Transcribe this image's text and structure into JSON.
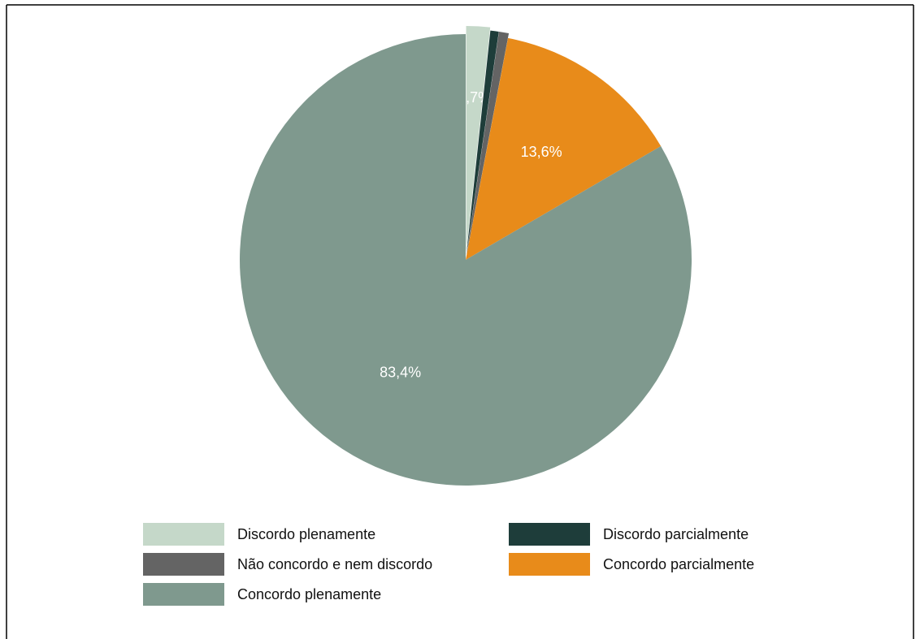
{
  "chart_data": {
    "type": "pie",
    "title": "",
    "slices": [
      {
        "label": "Discordo plenamente",
        "value": 1.7,
        "display": "1,7%",
        "color": "#c5d8c9"
      },
      {
        "label": "Discordo parcialmente",
        "value": 0.6,
        "display": "",
        "color": "#1e3d3a"
      },
      {
        "label": "Não concordo e nem discordo",
        "value": 0.7,
        "display": "",
        "color": "#646464"
      },
      {
        "label": "Concordo parcialmente",
        "value": 13.6,
        "display": "13,6%",
        "color": "#e88b1a"
      },
      {
        "label": "Concordo plenamente",
        "value": 83.4,
        "display": "83,4%",
        "color": "#7f998e"
      }
    ],
    "legend": {
      "placement": "bottom",
      "items": [
        {
          "label": "Discordo plenamente",
          "color": "#c5d8c9"
        },
        {
          "label": "Discordo parcialmente",
          "color": "#1e3d3a"
        },
        {
          "label": "Não concordo e nem discordo",
          "color": "#646464"
        },
        {
          "label": "Concordo parcialmente",
          "color": "#e88b1a"
        },
        {
          "label": "Concordo plenamente",
          "color": "#7f998e"
        }
      ]
    }
  }
}
